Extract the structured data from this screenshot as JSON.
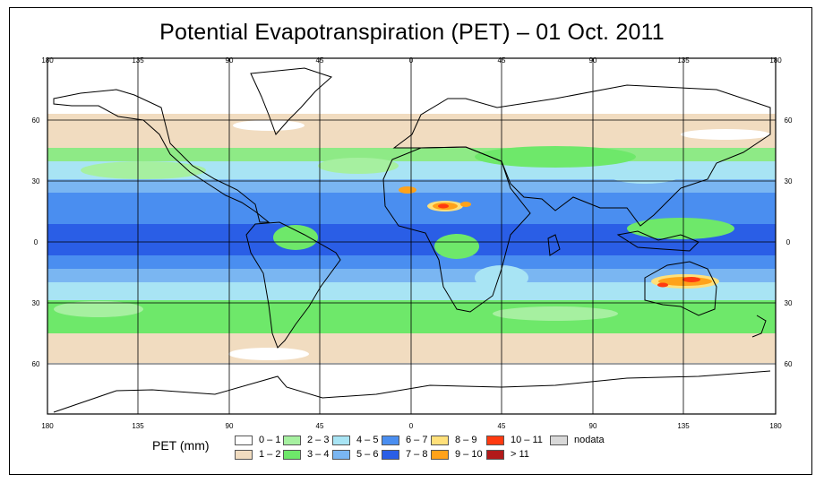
{
  "title": "Potential Evapotranspiration (PET) – 01 Oct. 2011",
  "lon_ticks": [
    "180",
    "135",
    "90",
    "45",
    "0",
    "45",
    "90",
    "135",
    "180"
  ],
  "lat_ticks": [
    "60",
    "30",
    "0",
    "30",
    "60"
  ],
  "legend": {
    "label": "PET (mm)",
    "items": [
      {
        "label": "0 – 1",
        "color": "#ffffff"
      },
      {
        "label": "1 – 2",
        "color": "#f1dcc0"
      },
      {
        "label": "2 – 3",
        "color": "#a6f0a0"
      },
      {
        "label": "3 – 4",
        "color": "#6ee86a"
      },
      {
        "label": "4 – 5",
        "color": "#a8e4f4"
      },
      {
        "label": "5 – 6",
        "color": "#7ab6f2"
      },
      {
        "label": "6 – 7",
        "color": "#4a8ef0"
      },
      {
        "label": "7 – 8",
        "color": "#2a5ee6"
      },
      {
        "label": "8 – 9",
        "color": "#ffe07a"
      },
      {
        "label": "9 – 10",
        "color": "#ffa21a"
      },
      {
        "label": "10 – 11",
        "color": "#ff3a10"
      },
      {
        "label": "> 11",
        "color": "#b21a1a"
      },
      {
        "label": "nodata",
        "color": "#d8d8d8"
      }
    ]
  }
}
